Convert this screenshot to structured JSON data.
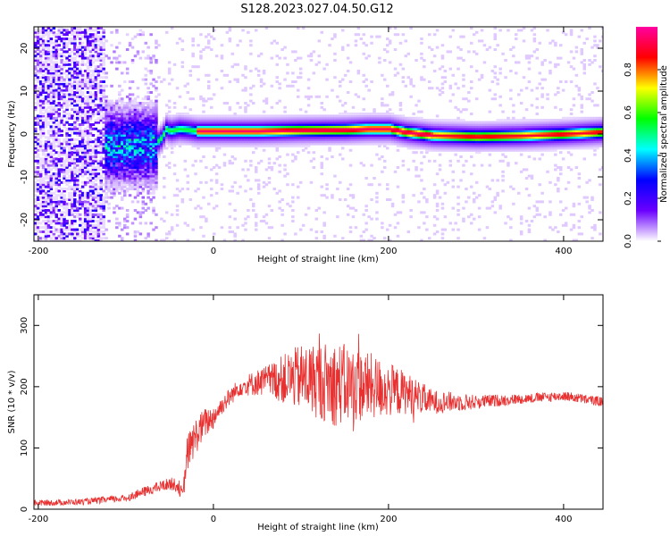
{
  "title": "S128.2023.027.04.50.G12",
  "chart_data": [
    {
      "type": "heatmap",
      "xlabel": "Height of straight line (km)",
      "ylabel": "Frequency (Hz)",
      "xlim": [
        -205,
        445
      ],
      "ylim": [
        -25,
        25
      ],
      "xticks": [
        -200,
        0,
        200,
        400
      ],
      "yticks": [
        -20,
        -10,
        0,
        10,
        20
      ],
      "colorbar": {
        "label": "Normalized spectral amplitude",
        "range": [
          0.0,
          1.0
        ],
        "ticks": [
          0.0,
          0.2,
          0.4,
          0.6,
          0.8
        ],
        "colors": [
          "#ffffff",
          "#6a00ff",
          "#0000ff",
          "#00ffff",
          "#00ff00",
          "#ffff00",
          "#ff0000",
          "#ff00a0"
        ]
      },
      "ridge": {
        "x": [
          -70,
          -60,
          -55,
          -50,
          -40,
          -30,
          -20,
          0,
          50,
          100,
          150,
          175,
          200,
          220,
          250,
          300,
          350,
          400,
          445
        ],
        "frequency": [
          -3,
          -1,
          1,
          0.5,
          1,
          0.8,
          0.5,
          0.5,
          0.5,
          0.7,
          0.8,
          1,
          1,
          0.2,
          -0.5,
          -0.8,
          -0.6,
          -0.2,
          0.3
        ]
      }
    },
    {
      "type": "line",
      "xlabel": "Height of straight line (km)",
      "ylabel": "SNR (10 * v/v)",
      "xlim": [
        -205,
        445
      ],
      "ylim": [
        0,
        350
      ],
      "xticks": [
        -200,
        0,
        200,
        400
      ],
      "yticks": [
        0,
        100,
        200,
        300
      ],
      "color": "#e83030",
      "envelope": {
        "x": [
          -205,
          -150,
          -100,
          -80,
          -50,
          -40,
          -35,
          -30,
          -20,
          -10,
          0,
          10,
          30,
          60,
          100,
          140,
          180,
          220,
          250,
          300,
          350,
          400,
          445
        ],
        "mean": [
          10,
          12,
          18,
          28,
          42,
          38,
          20,
          90,
          120,
          140,
          150,
          170,
          200,
          210,
          215,
          205,
          200,
          190,
          175,
          175,
          180,
          185,
          175
        ],
        "spread": [
          5,
          5,
          6,
          8,
          10,
          12,
          12,
          30,
          30,
          25,
          20,
          15,
          15,
          25,
          55,
          70,
          55,
          35,
          20,
          12,
          8,
          8,
          8
        ]
      }
    }
  ]
}
